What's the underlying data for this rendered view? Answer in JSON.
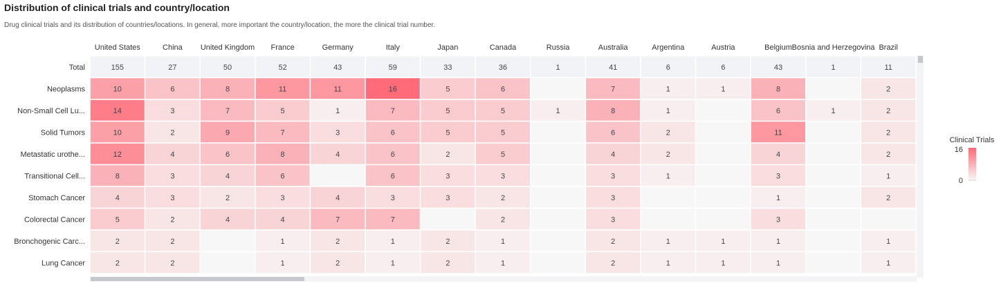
{
  "title": "Distribution of clinical trials and country/location",
  "subtitle": "Drug clinical trials and its distribution of countries/locations. In general, more important the country/location, the more the clinical trial number.",
  "chart_data": {
    "type": "heatmap",
    "columns": [
      "United States",
      "China",
      "United Kingdom",
      "France",
      "Germany",
      "Italy",
      "Japan",
      "Canada",
      "Russia",
      "Australia",
      "Argentina",
      "Austria",
      "Belgium",
      "Bosnia and Herzegovina",
      "Brazil"
    ],
    "rows": [
      "Total",
      "Neoplasms",
      "Non-Small Cell Lu...",
      "Solid Tumors",
      "Metastatic urothe...",
      "Transitional Cell...",
      "Stomach Cancer",
      "Colorectal Cancer",
      "Bronchogenic Carc...",
      "Lung Cancer"
    ],
    "values": [
      [
        155,
        27,
        50,
        52,
        43,
        59,
        33,
        36,
        1,
        41,
        6,
        6,
        43,
        1,
        11
      ],
      [
        10,
        6,
        8,
        11,
        11,
        16,
        5,
        6,
        null,
        7,
        1,
        1,
        8,
        null,
        2
      ],
      [
        14,
        3,
        7,
        5,
        1,
        7,
        5,
        5,
        1,
        8,
        1,
        null,
        6,
        1,
        2
      ],
      [
        10,
        2,
        9,
        7,
        3,
        6,
        5,
        5,
        null,
        6,
        2,
        null,
        11,
        null,
        2
      ],
      [
        12,
        4,
        6,
        8,
        4,
        6,
        2,
        5,
        null,
        4,
        2,
        null,
        4,
        null,
        2
      ],
      [
        8,
        3,
        4,
        6,
        null,
        6,
        3,
        3,
        null,
        3,
        1,
        null,
        3,
        null,
        1
      ],
      [
        4,
        3,
        2,
        3,
        4,
        3,
        3,
        2,
        null,
        3,
        null,
        null,
        1,
        null,
        2
      ],
      [
        5,
        2,
        4,
        4,
        7,
        7,
        null,
        2,
        null,
        3,
        null,
        null,
        3,
        null,
        null
      ],
      [
        2,
        2,
        null,
        1,
        2,
        1,
        2,
        1,
        null,
        2,
        1,
        1,
        1,
        null,
        1
      ],
      [
        2,
        2,
        null,
        1,
        2,
        1,
        2,
        1,
        null,
        2,
        1,
        1,
        1,
        null,
        1
      ]
    ],
    "legend": {
      "title": "Clinical Trials",
      "min": 0,
      "max": 16,
      "color_low": "#f7f7f7",
      "color_high": "#ff6b78",
      "position": "right"
    },
    "total_row_color": "#f2f3f6"
  }
}
